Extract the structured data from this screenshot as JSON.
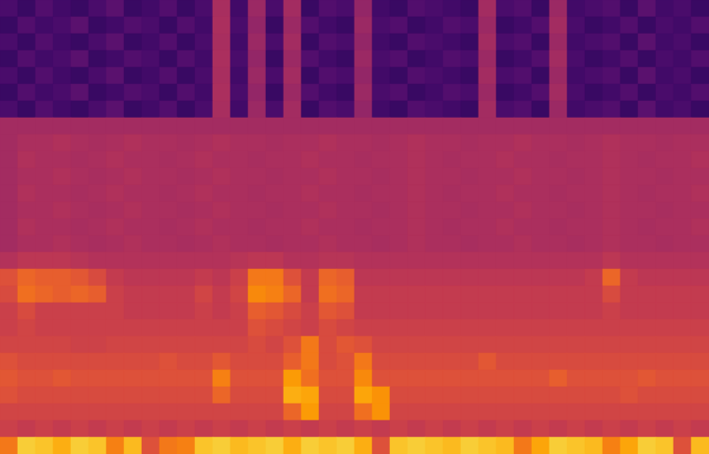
{
  "chart_data": {
    "type": "heatmap",
    "tick_labels": false,
    "zlim": [
      0,
      100
    ],
    "cells": [
      [
        22,
        18,
        24,
        20,
        18,
        22,
        26,
        18,
        20,
        24,
        18,
        22,
        45,
        20,
        42,
        22,
        44,
        18,
        24,
        22,
        40,
        20,
        18,
        24,
        22,
        20,
        18,
        44,
        22,
        24,
        18,
        42,
        20,
        22,
        24,
        18,
        26,
        20,
        22,
        18
      ],
      [
        18,
        24,
        20,
        22,
        26,
        18,
        20,
        24,
        22,
        18,
        24,
        20,
        46,
        22,
        40,
        18,
        42,
        24,
        20,
        18,
        42,
        22,
        24,
        18,
        20,
        24,
        22,
        42,
        18,
        20,
        24,
        44,
        22,
        18,
        20,
        24,
        18,
        22,
        20,
        24
      ],
      [
        22,
        18,
        24,
        20,
        18,
        22,
        26,
        18,
        20,
        24,
        18,
        22,
        45,
        20,
        42,
        22,
        44,
        18,
        24,
        22,
        40,
        20,
        18,
        24,
        22,
        20,
        18,
        44,
        22,
        24,
        18,
        42,
        20,
        22,
        24,
        18,
        26,
        20,
        22,
        18
      ],
      [
        18,
        24,
        20,
        22,
        26,
        18,
        20,
        24,
        22,
        18,
        24,
        20,
        46,
        22,
        40,
        18,
        42,
        24,
        20,
        18,
        42,
        22,
        24,
        18,
        20,
        24,
        22,
        42,
        18,
        20,
        24,
        44,
        22,
        18,
        20,
        24,
        18,
        22,
        20,
        24
      ],
      [
        22,
        18,
        24,
        20,
        18,
        22,
        26,
        18,
        20,
        24,
        18,
        22,
        45,
        20,
        42,
        22,
        44,
        18,
        24,
        22,
        40,
        20,
        18,
        24,
        22,
        20,
        18,
        44,
        22,
        24,
        18,
        42,
        20,
        22,
        24,
        18,
        26,
        20,
        22,
        18
      ],
      [
        18,
        24,
        20,
        22,
        26,
        18,
        20,
        24,
        22,
        18,
        24,
        20,
        46,
        22,
        40,
        18,
        42,
        24,
        20,
        18,
        42,
        22,
        24,
        18,
        20,
        24,
        22,
        42,
        18,
        20,
        24,
        44,
        22,
        18,
        20,
        24,
        18,
        22,
        20,
        24
      ],
      [
        22,
        18,
        24,
        20,
        18,
        22,
        26,
        18,
        20,
        24,
        18,
        22,
        45,
        20,
        42,
        22,
        44,
        18,
        24,
        22,
        40,
        20,
        18,
        24,
        22,
        20,
        18,
        44,
        22,
        24,
        18,
        42,
        20,
        22,
        24,
        18,
        26,
        20,
        22,
        18
      ],
      [
        44,
        44,
        44,
        44,
        44,
        44,
        44,
        44,
        44,
        44,
        44,
        44,
        44,
        44,
        44,
        44,
        44,
        44,
        44,
        44,
        44,
        44,
        44,
        44,
        44,
        44,
        44,
        44,
        44,
        44,
        44,
        44,
        44,
        44,
        44,
        44,
        44,
        44,
        44,
        44
      ],
      [
        44,
        46,
        46,
        47,
        46,
        45,
        46,
        47,
        46,
        46,
        45,
        46,
        47,
        46,
        46,
        45,
        46,
        46,
        47,
        46,
        46,
        45,
        46,
        47,
        46,
        46,
        45,
        46,
        46,
        47,
        46,
        46,
        45,
        46,
        47,
        46,
        46,
        45,
        46,
        46
      ],
      [
        44,
        47,
        46,
        46,
        45,
        46,
        47,
        46,
        46,
        45,
        46,
        47,
        46,
        46,
        45,
        46,
        46,
        47,
        46,
        46,
        45,
        46,
        46,
        47,
        46,
        45,
        46,
        46,
        47,
        46,
        46,
        45,
        46,
        46,
        47,
        46,
        45,
        46,
        46,
        47
      ],
      [
        44,
        46,
        46,
        47,
        46,
        45,
        46,
        47,
        46,
        46,
        45,
        46,
        47,
        46,
        46,
        45,
        46,
        46,
        47,
        46,
        46,
        45,
        46,
        47,
        46,
        46,
        45,
        46,
        46,
        47,
        46,
        46,
        45,
        46,
        47,
        46,
        46,
        45,
        46,
        46
      ],
      [
        44,
        47,
        46,
        46,
        45,
        46,
        47,
        46,
        46,
        45,
        46,
        47,
        46,
        46,
        45,
        46,
        46,
        47,
        46,
        46,
        45,
        46,
        46,
        47,
        46,
        45,
        46,
        46,
        47,
        46,
        46,
        45,
        46,
        46,
        47,
        46,
        45,
        46,
        46,
        47
      ],
      [
        44,
        46,
        46,
        47,
        46,
        45,
        46,
        47,
        46,
        46,
        45,
        46,
        47,
        46,
        46,
        45,
        46,
        46,
        47,
        46,
        46,
        45,
        46,
        47,
        46,
        46,
        45,
        46,
        46,
        47,
        46,
        46,
        45,
        46,
        47,
        46,
        46,
        45,
        46,
        46
      ],
      [
        44,
        47,
        46,
        46,
        45,
        46,
        47,
        46,
        46,
        45,
        46,
        47,
        46,
        46,
        45,
        46,
        46,
        47,
        46,
        46,
        45,
        46,
        46,
        47,
        46,
        45,
        46,
        46,
        47,
        46,
        46,
        45,
        46,
        46,
        47,
        46,
        45,
        46,
        46,
        47
      ],
      [
        44,
        46,
        46,
        47,
        46,
        45,
        46,
        47,
        46,
        46,
        45,
        46,
        47,
        46,
        46,
        45,
        46,
        46,
        47,
        46,
        46,
        45,
        46,
        47,
        46,
        46,
        45,
        46,
        46,
        47,
        46,
        46,
        45,
        46,
        47,
        46,
        46,
        45,
        46,
        46
      ],
      [
        48,
        50,
        50,
        50,
        49,
        48,
        48,
        48,
        48,
        48,
        48,
        48,
        48,
        49,
        50,
        50,
        48,
        48,
        49,
        49,
        48,
        48,
        48,
        48,
        48,
        48,
        48,
        48,
        48,
        48,
        48,
        48,
        48,
        48,
        50,
        48,
        48,
        48,
        48,
        48
      ],
      [
        60,
        66,
        64,
        64,
        62,
        58,
        52,
        50,
        50,
        50,
        50,
        52,
        50,
        54,
        70,
        70,
        60,
        52,
        66,
        64,
        50,
        50,
        50,
        50,
        50,
        50,
        50,
        50,
        50,
        50,
        50,
        50,
        50,
        52,
        66,
        52,
        50,
        50,
        50,
        50
      ],
      [
        58,
        68,
        66,
        64,
        66,
        64,
        54,
        52,
        52,
        52,
        52,
        56,
        52,
        56,
        74,
        72,
        66,
        52,
        68,
        66,
        52,
        52,
        52,
        52,
        52,
        52,
        52,
        52,
        52,
        52,
        52,
        52,
        52,
        52,
        58,
        52,
        52,
        52,
        52,
        52
      ],
      [
        54,
        58,
        54,
        54,
        54,
        54,
        54,
        52,
        52,
        52,
        52,
        54,
        52,
        54,
        64,
        62,
        58,
        54,
        62,
        60,
        52,
        52,
        52,
        52,
        52,
        52,
        52,
        52,
        52,
        52,
        52,
        52,
        52,
        52,
        54,
        52,
        52,
        52,
        52,
        52
      ],
      [
        54,
        56,
        54,
        54,
        54,
        54,
        54,
        54,
        54,
        54,
        54,
        54,
        54,
        54,
        60,
        58,
        56,
        54,
        58,
        56,
        54,
        54,
        54,
        54,
        54,
        54,
        54,
        54,
        54,
        54,
        54,
        54,
        54,
        54,
        54,
        54,
        54,
        54,
        54,
        54
      ],
      [
        56,
        56,
        56,
        56,
        55,
        55,
        56,
        56,
        56,
        56,
        56,
        56,
        56,
        56,
        58,
        56,
        60,
        70,
        58,
        62,
        60,
        56,
        56,
        56,
        56,
        56,
        56,
        56,
        56,
        56,
        56,
        56,
        56,
        56,
        56,
        56,
        56,
        56,
        56,
        56
      ],
      [
        60,
        58,
        58,
        58,
        58,
        58,
        58,
        58,
        58,
        60,
        58,
        58,
        62,
        58,
        58,
        58,
        64,
        70,
        58,
        60,
        70,
        58,
        58,
        58,
        58,
        58,
        58,
        62,
        58,
        58,
        58,
        58,
        58,
        58,
        58,
        58,
        58,
        58,
        58,
        58
      ],
      [
        62,
        60,
        60,
        62,
        60,
        60,
        60,
        60,
        60,
        60,
        60,
        60,
        72,
        60,
        60,
        60,
        78,
        68,
        60,
        60,
        74,
        60,
        60,
        60,
        60,
        60,
        60,
        60,
        60,
        60,
        60,
        64,
        60,
        60,
        60,
        60,
        62,
        60,
        60,
        60
      ],
      [
        60,
        58,
        58,
        58,
        58,
        58,
        58,
        58,
        58,
        58,
        58,
        58,
        66,
        58,
        58,
        58,
        82,
        80,
        58,
        58,
        80,
        76,
        58,
        58,
        58,
        58,
        58,
        58,
        58,
        58,
        58,
        58,
        58,
        58,
        58,
        60,
        58,
        58,
        58,
        58
      ],
      [
        56,
        56,
        56,
        56,
        56,
        56,
        56,
        56,
        56,
        56,
        56,
        56,
        56,
        56,
        56,
        56,
        66,
        78,
        56,
        56,
        68,
        76,
        56,
        56,
        56,
        56,
        56,
        56,
        56,
        56,
        56,
        56,
        56,
        56,
        56,
        56,
        56,
        56,
        56,
        56
      ],
      [
        54,
        52,
        54,
        52,
        54,
        52,
        54,
        52,
        54,
        52,
        54,
        52,
        54,
        52,
        54,
        52,
        54,
        52,
        54,
        52,
        54,
        52,
        54,
        52,
        54,
        52,
        54,
        52,
        54,
        52,
        54,
        52,
        54,
        52,
        54,
        52,
        54,
        52,
        54,
        52
      ],
      [
        70,
        88,
        86,
        82,
        88,
        86,
        72,
        84,
        60,
        70,
        72,
        86,
        88,
        84,
        86,
        88,
        82,
        88,
        86,
        88,
        82,
        60,
        86,
        88,
        86,
        84,
        88,
        86,
        84,
        70,
        80,
        88,
        86,
        84,
        72,
        80,
        88,
        86,
        60,
        84
      ]
    ]
  }
}
